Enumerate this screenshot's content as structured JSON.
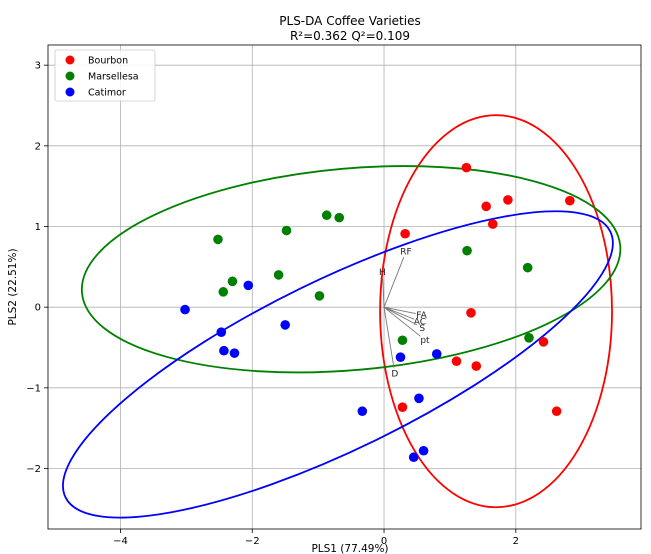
{
  "chart_data": {
    "type": "scatter",
    "title": "PLS-DA Coffee Varieties",
    "subtitle": "R²=0.362   Q²=0.109",
    "xlabel": "PLS1 (77.49%)",
    "ylabel": "PLS2 (22.51%)",
    "xlim": [
      -5.1,
      3.9
    ],
    "ylim": [
      -2.75,
      3.25
    ],
    "xticks": [
      -4,
      -2,
      0,
      2
    ],
    "yticks": [
      -2,
      -1,
      0,
      1,
      2,
      3
    ],
    "x_tick_labels": [
      "−4",
      "−2",
      "0",
      "2"
    ],
    "y_tick_labels": [
      "−2",
      "−1",
      "0",
      "1",
      "2",
      "3"
    ],
    "grid": true,
    "legend_position": "top-left",
    "series": [
      {
        "name": "Bourbon",
        "color": "#ff0000",
        "points": [
          [
            1.25,
            1.73
          ],
          [
            1.55,
            1.25
          ],
          [
            1.65,
            1.03
          ],
          [
            1.88,
            1.33
          ],
          [
            2.82,
            1.32
          ],
          [
            0.32,
            0.91
          ],
          [
            1.32,
            -0.07
          ],
          [
            2.42,
            -0.43
          ],
          [
            1.1,
            -0.67
          ],
          [
            1.4,
            -0.73
          ],
          [
            0.28,
            -1.24
          ],
          [
            2.62,
            -1.29
          ]
        ]
      },
      {
        "name": "Marsellesa",
        "color": "#008000",
        "points": [
          [
            -0.87,
            1.14
          ],
          [
            -0.68,
            1.11
          ],
          [
            -1.48,
            0.95
          ],
          [
            -2.52,
            0.84
          ],
          [
            -2.3,
            0.32
          ],
          [
            -2.44,
            0.19
          ],
          [
            -1.6,
            0.4
          ],
          [
            -0.98,
            0.14
          ],
          [
            1.26,
            0.7
          ],
          [
            2.18,
            0.49
          ],
          [
            0.28,
            -0.41
          ],
          [
            2.2,
            -0.38
          ]
        ]
      },
      {
        "name": "Catimor",
        "color": "#0000ff",
        "points": [
          [
            -3.02,
            -0.03
          ],
          [
            -2.06,
            0.27
          ],
          [
            -1.5,
            -0.22
          ],
          [
            -2.47,
            -0.31
          ],
          [
            -2.43,
            -0.54
          ],
          [
            -2.27,
            -0.57
          ],
          [
            0.25,
            -0.62
          ],
          [
            0.8,
            -0.58
          ],
          [
            -0.33,
            -1.29
          ],
          [
            0.53,
            -1.13
          ],
          [
            0.6,
            -1.78
          ],
          [
            0.45,
            -1.86
          ]
        ]
      }
    ],
    "ellipses": [
      {
        "series": "Bourbon",
        "color": "#ff0000",
        "center": [
          1.7,
          -0.05
        ],
        "semi_x": 1.76,
        "semi_y": 2.43,
        "rotation_deg": 0
      },
      {
        "series": "Marsellesa",
        "color": "#008000",
        "center": [
          -0.5,
          0.47
        ],
        "semi_x": 4.1,
        "semi_y": 1.25,
        "rotation_deg": -5
      },
      {
        "series": "Catimor",
        "color": "#0000ff",
        "center": [
          -0.7,
          -0.71
        ],
        "semi_x": 4.6,
        "semi_y": 1.05,
        "rotation_deg": -26
      }
    ],
    "loadings": [
      {
        "label": "H",
        "x": -0.02,
        "y": 0.36
      },
      {
        "label": "RF",
        "x": 0.3,
        "y": 0.62
      },
      {
        "label": "FA",
        "x": 0.48,
        "y": -0.08
      },
      {
        "label": "AC",
        "x": 0.46,
        "y": -0.15
      },
      {
        "label": "S",
        "x": 0.5,
        "y": -0.22
      },
      {
        "label": "pt",
        "x": 0.55,
        "y": -0.36
      },
      {
        "label": "D",
        "x": 0.15,
        "y": -0.75
      }
    ]
  }
}
